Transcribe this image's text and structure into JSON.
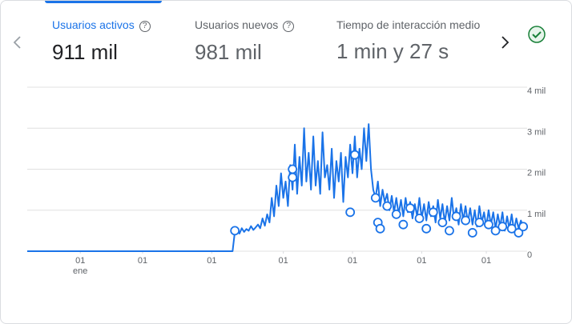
{
  "tabs": [
    {
      "label": "Usuarios activos",
      "value": "911 mil"
    },
    {
      "label": "Usuarios nuevos",
      "value": "981 mil"
    },
    {
      "label": "Tiempo de interacción medio",
      "value": "1 min y 27 s"
    }
  ],
  "chart_data": {
    "type": "line",
    "color": "#1a73e8",
    "grid": true,
    "xlim": [
      0,
      216
    ],
    "ylim": [
      0,
      4000
    ],
    "yticks": [
      {
        "value": 0,
        "label": "0"
      },
      {
        "value": 1000,
        "label": "1 mil"
      },
      {
        "value": 2000,
        "label": "2 mil"
      },
      {
        "value": 3000,
        "label": "3 mil"
      },
      {
        "value": 4000,
        "label": "4 mil"
      }
    ],
    "xticks": [
      {
        "value": 23,
        "label": "01"
      },
      {
        "value": 50,
        "label": "01"
      },
      {
        "value": 80,
        "label": "01"
      },
      {
        "value": 111,
        "label": "01"
      },
      {
        "value": 141,
        "label": "01"
      },
      {
        "value": 171,
        "label": "01"
      },
      {
        "value": 199,
        "label": "01"
      }
    ],
    "x_sublabel": "ene",
    "x": [
      0,
      89,
      90,
      91,
      92,
      93,
      94,
      95,
      96,
      97,
      98,
      99,
      100,
      101,
      102,
      103,
      104,
      105,
      106,
      107,
      108,
      109,
      110,
      111,
      112,
      113,
      114,
      115,
      116,
      117,
      118,
      119,
      120,
      121,
      122,
      123,
      124,
      125,
      126,
      127,
      128,
      129,
      130,
      131,
      132,
      133,
      134,
      135,
      136,
      137,
      138,
      139,
      140,
      141,
      142,
      143,
      144,
      145,
      146,
      147,
      148,
      149,
      150,
      151,
      152,
      153,
      154,
      155,
      156,
      157,
      158,
      159,
      160,
      161,
      162,
      163,
      164,
      165,
      166,
      167,
      168,
      169,
      170,
      171,
      172,
      173,
      174,
      175,
      176,
      177,
      178,
      179,
      180,
      181,
      182,
      183,
      184,
      185,
      186,
      187,
      188,
      189,
      190,
      191,
      192,
      193,
      194,
      195,
      196,
      197,
      198,
      199,
      200,
      201,
      202,
      203,
      204,
      205,
      206,
      207,
      208,
      209,
      210,
      211,
      212,
      213,
      214,
      215
    ],
    "values": [
      0,
      0,
      480,
      520,
      430,
      560,
      470,
      540,
      500,
      610,
      520,
      580,
      650,
      560,
      800,
      620,
      900,
      700,
      1300,
      850,
      1600,
      1100,
      1900,
      1300,
      1700,
      1100,
      2100,
      1500,
      2600,
      1400,
      2300,
      1600,
      3000,
      1700,
      2400,
      1500,
      2800,
      1600,
      2200,
      1400,
      2900,
      1800,
      2100,
      1500,
      2500,
      1300,
      2200,
      1700,
      2400,
      1200,
      2300,
      1800,
      2600,
      1900,
      2800,
      1800,
      2500,
      2000,
      3000,
      2200,
      3100,
      2000,
      1500,
      1300,
      1700,
      1100,
      1500,
      1200,
      1400,
      1000,
      1350,
      950,
      1300,
      900,
      1250,
      850,
      1300,
      950,
      1200,
      800,
      1150,
      850,
      1300,
      800,
      1150,
      750,
      1200,
      850,
      1100,
      700,
      1250,
      800,
      1150,
      700,
      1100,
      750,
      1300,
      800,
      1050,
      650,
      1150,
      750,
      1100,
      700,
      1050,
      650,
      1000,
      600,
      1100,
      700,
      950,
      600,
      1000,
      650,
      950,
      550,
      900,
      600,
      950,
      500,
      850,
      550,
      900,
      500,
      800,
      550,
      750,
      600
    ],
    "anomalies": {
      "x": [
        90,
        115,
        115,
        140,
        142,
        151,
        152,
        153,
        156,
        160,
        163,
        166,
        170,
        173,
        176,
        180,
        183,
        186,
        190,
        193,
        196,
        200,
        203,
        206,
        210,
        213,
        215
      ],
      "values": [
        500,
        2000,
        1800,
        950,
        2350,
        1300,
        700,
        550,
        1100,
        900,
        650,
        1050,
        800,
        550,
        950,
        700,
        500,
        850,
        750,
        450,
        700,
        650,
        500,
        600,
        550,
        450,
        600
      ]
    }
  }
}
